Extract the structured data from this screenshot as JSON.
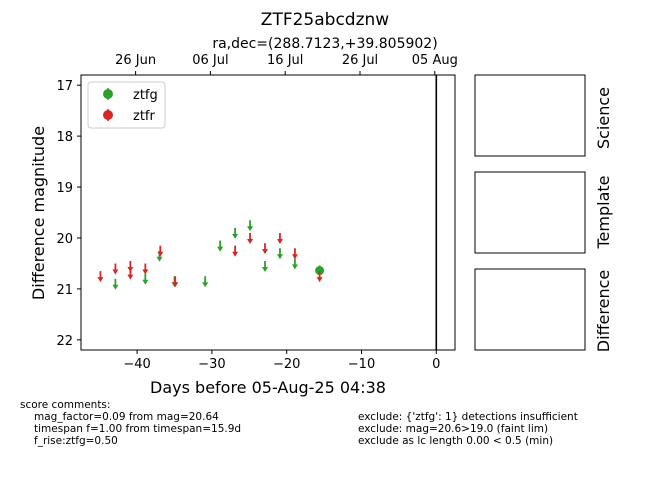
{
  "chart_data": {
    "type": "scatter",
    "title": "ZTF25abcdznw",
    "subtitle": "ra,dec=(288.7123,+39.805902)",
    "xlabel": "Days before 05-Aug-25 04:38",
    "ylabel": "Difference magnitude",
    "xlim": [
      -47.5,
      2.5
    ],
    "ylim": [
      22.2,
      16.8
    ],
    "y_inverted": true,
    "x_ticks": [
      "−40",
      "−30",
      "−20",
      "−10",
      "0"
    ],
    "x_tick_values": [
      -40,
      -30,
      -20,
      -10,
      0
    ],
    "y_ticks": [
      "17",
      "18",
      "19",
      "20",
      "21",
      "22"
    ],
    "y_tick_values": [
      17,
      18,
      19,
      20,
      21,
      22
    ],
    "top_ticks": [
      {
        "label": "26 Jun",
        "x": -40.2
      },
      {
        "label": "06 Jul",
        "x": -30.2
      },
      {
        "label": "16 Jul",
        "x": -20.2
      },
      {
        "label": "26 Jul",
        "x": -10.2
      },
      {
        "label": "05 Aug",
        "x": -0.2
      }
    ],
    "vline_x": 0,
    "legend_placement": "top-left",
    "series": [
      {
        "name": "ztfg",
        "color": "#2ca02c",
        "detections": [
          {
            "x": -15.6,
            "y": 20.64,
            "err": 0.1
          }
        ],
        "upper_limits": [
          {
            "x": -42.9,
            "y": 20.9
          },
          {
            "x": -38.9,
            "y": 20.8
          },
          {
            "x": -37.0,
            "y": 20.35
          },
          {
            "x": -35.0,
            "y": 20.85
          },
          {
            "x": -30.9,
            "y": 20.85
          },
          {
            "x": -28.9,
            "y": 20.15
          },
          {
            "x": -26.9,
            "y": 19.9
          },
          {
            "x": -24.9,
            "y": 19.75
          },
          {
            "x": -22.9,
            "y": 20.55
          },
          {
            "x": -20.9,
            "y": 20.3
          },
          {
            "x": -18.9,
            "y": 20.5
          }
        ]
      },
      {
        "name": "ztfr",
        "color": "#d62728",
        "detections": [],
        "upper_limits": [
          {
            "x": -44.9,
            "y": 20.75
          },
          {
            "x": -42.9,
            "y": 20.6
          },
          {
            "x": -40.9,
            "y": 20.55
          },
          {
            "x": -40.9,
            "y": 20.7
          },
          {
            "x": -38.9,
            "y": 20.6
          },
          {
            "x": -36.9,
            "y": 20.25
          },
          {
            "x": -34.9,
            "y": 20.85
          },
          {
            "x": -26.9,
            "y": 20.25
          },
          {
            "x": -24.9,
            "y": 20.0
          },
          {
            "x": -22.9,
            "y": 20.2
          },
          {
            "x": -20.9,
            "y": 20.0
          },
          {
            "x": -18.9,
            "y": 20.3
          },
          {
            "x": -15.6,
            "y": 20.75
          }
        ]
      }
    ]
  },
  "side_panels": [
    "Science",
    "Template",
    "Difference"
  ],
  "score_comments": {
    "heading": "score comments:",
    "lines": [
      "mag_factor=0.09 from mag=20.64",
      "timespan f=1.00 from timespan=15.9d",
      "f_rise:ztfg=0.50"
    ]
  },
  "exclude_lines": [
    "exclude: {'ztfg': 1} detections insufficient",
    "exclude: mag=20.6>19.0 (faint lim)",
    "exclude as lc length 0.00 < 0.5 (min)"
  ]
}
